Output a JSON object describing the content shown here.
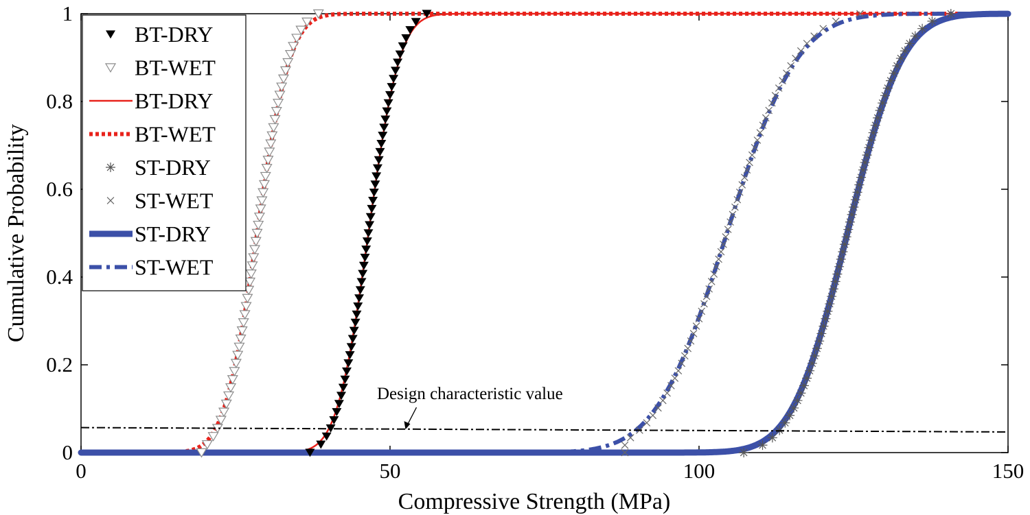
{
  "chart_data": {
    "type": "line",
    "title": "",
    "xlabel": "Compressive Strength (MPa)",
    "ylabel": "Cumulative Probability",
    "xlim": [
      0,
      150
    ],
    "ylim": [
      0,
      1
    ],
    "xticks": [
      0,
      50,
      100,
      150
    ],
    "yticks": [
      0,
      0.2,
      0.4,
      0.6,
      0.8,
      1
    ],
    "grid": false,
    "legend_position": "top-left",
    "legend": [
      "BT-DRY",
      "BT-WET",
      "BT-DRY",
      "BT-WET",
      "ST-DRY",
      "ST-WET",
      "ST-DRY",
      "ST-WET"
    ],
    "annotation": {
      "text": "Design characteristic value",
      "points_to": [
        52.5,
        0.053
      ]
    },
    "colors": {
      "black": "#000000",
      "red": "#e8231c",
      "blue": "#3c50a8",
      "gray": "#8c8c8c"
    },
    "design_line": {
      "x": [
        0,
        150
      ],
      "y": [
        0.057,
        0.047
      ]
    },
    "series": [
      {
        "name": "BT-DRY",
        "style": "marker-filled-triangle",
        "mu": 46.5,
        "sigma": 4.0,
        "range": [
          37.0,
          60.5
        ],
        "n": 55
      },
      {
        "name": "BT-WET",
        "style": "marker-open-triangle",
        "mu": 28.5,
        "sigma": 4.2,
        "range": [
          19.5,
          39.5
        ],
        "n": 55
      },
      {
        "name": "BT-DRY",
        "style": "line-solid-red",
        "mu": 46.5,
        "sigma": 4.0,
        "range": [
          0,
          150
        ]
      },
      {
        "name": "BT-WET",
        "style": "line-dotted-red",
        "mu": 28.5,
        "sigma": 4.2,
        "range": [
          0,
          150
        ]
      },
      {
        "name": "ST-DRY",
        "style": "marker-asterisk",
        "mu": 124.0,
        "sigma": 7.0,
        "range": [
          105.0,
          142.0
        ],
        "n": 60
      },
      {
        "name": "ST-WET",
        "style": "marker-x",
        "mu": 104.5,
        "sigma": 9.0,
        "range": [
          88.0,
          128.0
        ],
        "n": 60
      },
      {
        "name": "ST-DRY",
        "style": "line-thick-blue",
        "mu": 124.0,
        "sigma": 7.0,
        "range": [
          0,
          150
        ]
      },
      {
        "name": "ST-WET",
        "style": "line-dashdot-blue",
        "mu": 104.5,
        "sigma": 9.0,
        "range": [
          0,
          150
        ]
      }
    ]
  }
}
